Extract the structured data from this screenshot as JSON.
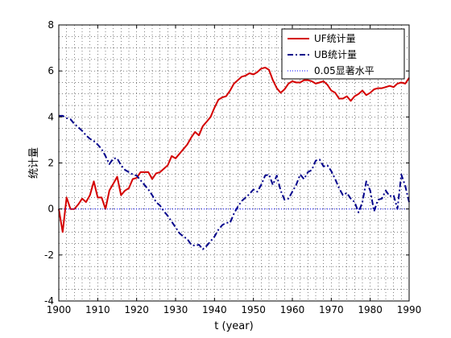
{
  "chart_data": {
    "type": "line",
    "xlabel": "t (year)",
    "ylabel": "统计量",
    "xlim": [
      1900,
      1990
    ],
    "ylim": [
      -4,
      8
    ],
    "xticks": [
      1900,
      1910,
      1920,
      1930,
      1940,
      1950,
      1960,
      1970,
      1980,
      1990
    ],
    "yticks": [
      -4,
      -2,
      0,
      2,
      4,
      6,
      8
    ],
    "grid": true,
    "legend_position": "top-right",
    "series": [
      {
        "name": "UF统计量",
        "color": "#d40000",
        "style": "solid",
        "x": [
          1900,
          1901,
          1902,
          1903,
          1904,
          1905,
          1906,
          1907,
          1908,
          1909,
          1910,
          1911,
          1912,
          1913,
          1914,
          1915,
          1916,
          1917,
          1918,
          1919,
          1920,
          1921,
          1922,
          1923,
          1924,
          1925,
          1926,
          1927,
          1928,
          1929,
          1930,
          1931,
          1932,
          1933,
          1934,
          1935,
          1936,
          1937,
          1938,
          1939,
          1940,
          1941,
          1942,
          1943,
          1944,
          1945,
          1946,
          1947,
          1948,
          1949,
          1950,
          1951,
          1952,
          1953,
          1954,
          1955,
          1956,
          1957,
          1958,
          1959,
          1960,
          1961,
          1962,
          1963,
          1964,
          1965,
          1966,
          1967,
          1968,
          1969,
          1970,
          1971,
          1972,
          1973,
          1974,
          1975,
          1976,
          1977,
          1978,
          1979,
          1980,
          1981,
          1982,
          1983,
          1984,
          1985,
          1986,
          1987,
          1988,
          1989,
          1990
        ],
        "values": [
          0.0,
          -1.0,
          0.5,
          0.0,
          0.0,
          0.2,
          0.45,
          0.3,
          0.6,
          1.2,
          0.5,
          0.5,
          0.0,
          0.8,
          1.1,
          1.4,
          0.6,
          0.8,
          0.9,
          1.3,
          1.35,
          1.6,
          1.6,
          1.6,
          1.3,
          1.55,
          1.6,
          1.75,
          1.9,
          2.3,
          2.2,
          2.4,
          2.6,
          2.8,
          3.1,
          3.35,
          3.2,
          3.6,
          3.8,
          4.0,
          4.4,
          4.75,
          4.85,
          4.9,
          5.15,
          5.45,
          5.6,
          5.75,
          5.8,
          5.9,
          5.85,
          5.95,
          6.1,
          6.15,
          6.05,
          5.6,
          5.25,
          5.05,
          5.2,
          5.45,
          5.55,
          5.5,
          5.5,
          5.6,
          5.6,
          5.55,
          5.45,
          5.5,
          5.55,
          5.4,
          5.15,
          5.05,
          4.8,
          4.8,
          4.9,
          4.7,
          4.9,
          5.0,
          5.15,
          4.95,
          5.05,
          5.2,
          5.25,
          5.25,
          5.3,
          5.35,
          5.3,
          5.45,
          5.5,
          5.45,
          5.7
        ]
      },
      {
        "name": "UB统计量",
        "color": "#00008b",
        "style": "dashdot",
        "x": [
          1900,
          1901,
          1902,
          1903,
          1904,
          1905,
          1906,
          1907,
          1908,
          1909,
          1910,
          1911,
          1912,
          1913,
          1914,
          1915,
          1916,
          1917,
          1918,
          1919,
          1920,
          1921,
          1922,
          1923,
          1924,
          1925,
          1926,
          1927,
          1928,
          1929,
          1930,
          1931,
          1932,
          1933,
          1934,
          1935,
          1936,
          1937,
          1938,
          1939,
          1940,
          1941,
          1942,
          1943,
          1944,
          1945,
          1946,
          1947,
          1948,
          1949,
          1950,
          1951,
          1952,
          1953,
          1954,
          1955,
          1956,
          1957,
          1958,
          1959,
          1960,
          1961,
          1962,
          1963,
          1964,
          1965,
          1966,
          1967,
          1968,
          1969,
          1970,
          1971,
          1972,
          1973,
          1974,
          1975,
          1976,
          1977,
          1978,
          1979,
          1980,
          1981,
          1982,
          1983,
          1984,
          1985,
          1986,
          1987,
          1988,
          1989,
          1990
        ],
        "values": [
          4.05,
          4.05,
          3.95,
          3.9,
          3.7,
          3.55,
          3.4,
          3.2,
          3.05,
          2.95,
          2.8,
          2.6,
          2.3,
          1.95,
          2.2,
          2.2,
          1.9,
          1.7,
          1.6,
          1.5,
          1.45,
          1.25,
          1.05,
          0.85,
          0.6,
          0.3,
          0.15,
          -0.1,
          -0.3,
          -0.55,
          -0.8,
          -1.05,
          -1.2,
          -1.3,
          -1.55,
          -1.6,
          -1.55,
          -1.75,
          -1.6,
          -1.4,
          -1.2,
          -0.9,
          -0.7,
          -0.6,
          -0.6,
          -0.2,
          0.1,
          0.35,
          0.5,
          0.65,
          0.85,
          0.75,
          1.05,
          1.45,
          1.5,
          1.05,
          1.45,
          0.8,
          0.4,
          0.45,
          0.75,
          1.05,
          1.5,
          1.3,
          1.6,
          1.7,
          2.1,
          2.15,
          1.85,
          1.9,
          1.65,
          1.3,
          0.9,
          0.6,
          0.7,
          0.45,
          0.3,
          -0.15,
          0.3,
          1.2,
          0.8,
          -0.1,
          0.4,
          0.45,
          0.8,
          0.55,
          0.6,
          0.0,
          1.5,
          1.0,
          0.3
        ]
      },
      {
        "name": "0.05显著水平",
        "color": "#0000ff",
        "style": "dotted",
        "x": [
          1900,
          1990
        ],
        "values": [
          0,
          0
        ]
      }
    ]
  }
}
